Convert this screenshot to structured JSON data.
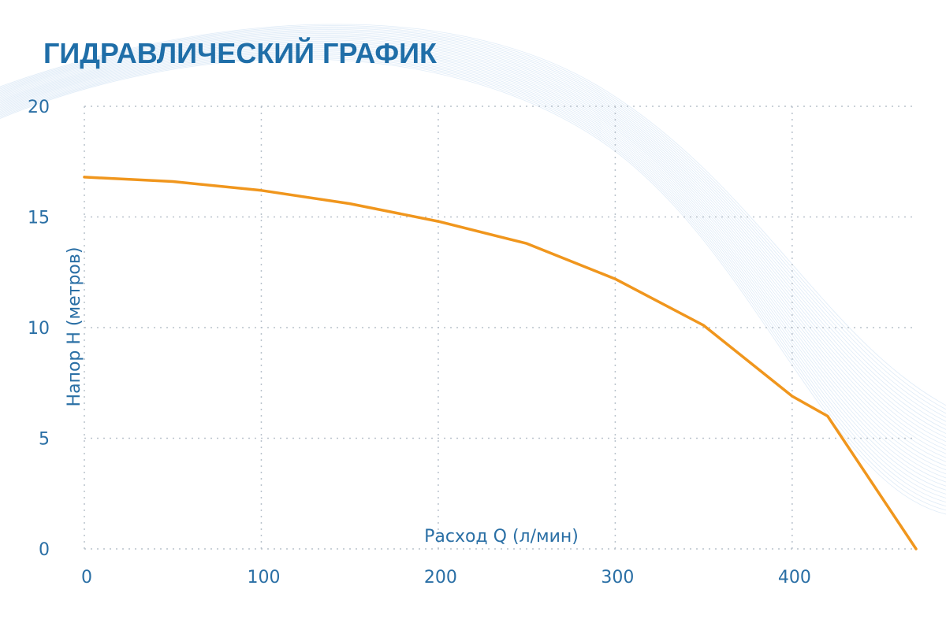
{
  "chart_data": {
    "type": "line",
    "title": "ГИДРАВЛИЧЕСКИЙ ГРАФИК",
    "xlabel": "Расход Q (л/мин)",
    "ylabel": "Напор H (метров)",
    "xlim": [
      0,
      470
    ],
    "ylim": [
      0,
      20
    ],
    "xticks": [
      "0",
      "100",
      "200",
      "300",
      "400"
    ],
    "yticks": [
      "0",
      "5",
      "10",
      "15",
      "20"
    ],
    "grid": true,
    "series": [
      {
        "color": "#f0961d",
        "x": [
          0,
          50,
          100,
          150,
          200,
          250,
          300,
          350,
          400,
          420,
          470
        ],
        "y": [
          16.8,
          16.6,
          16.2,
          15.6,
          14.8,
          13.8,
          12.2,
          10.1,
          6.9,
          6.0,
          0
        ]
      }
    ]
  }
}
